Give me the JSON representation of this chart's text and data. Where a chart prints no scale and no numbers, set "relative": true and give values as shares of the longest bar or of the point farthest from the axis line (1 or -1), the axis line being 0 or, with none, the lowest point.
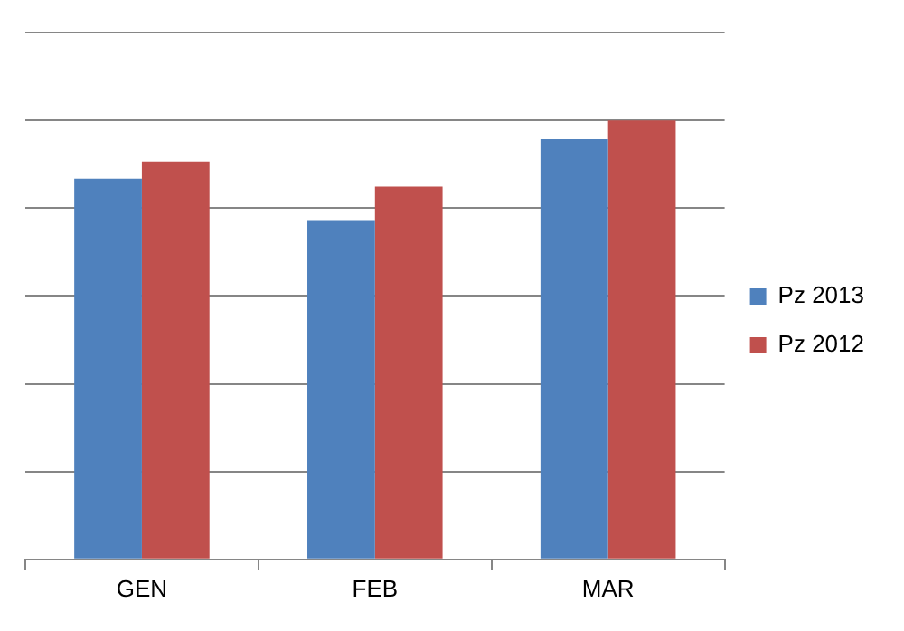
{
  "chart_data": {
    "type": "bar",
    "relative": true,
    "categories": [
      "GEN",
      "FEB",
      "MAR"
    ],
    "series": [
      {
        "name": "Pz 2013",
        "color": "#4f81bd",
        "values": [
          0.867,
          0.773,
          0.957
        ]
      },
      {
        "name": "Pz 2012",
        "color": "#c0504d",
        "values": [
          0.906,
          0.849,
          1
        ]
      }
    ],
    "grid": "y",
    "legend": "right"
  }
}
